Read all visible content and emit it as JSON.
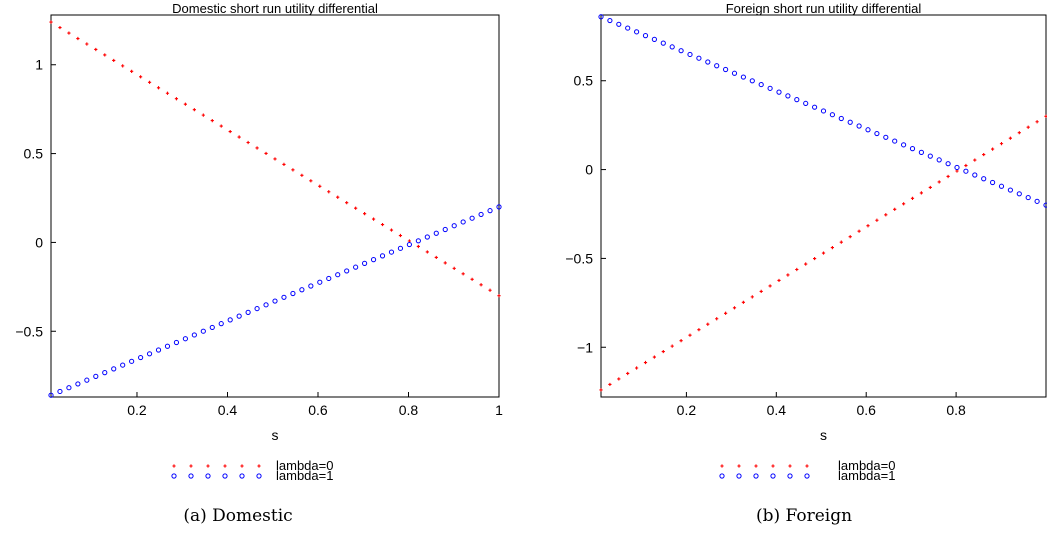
{
  "colors": {
    "lambda0": "#ff0000",
    "lambda1": "#0000ff",
    "axis": "#000000"
  },
  "chart_data": [
    {
      "type": "scatter",
      "title": "Domestic short run utility differential",
      "xlabel": "s",
      "ylabel": "",
      "xlim": [
        0.01,
        1.0
      ],
      "ylim": [
        -0.87,
        1.28
      ],
      "xticks": [
        "0.2",
        "0.4",
        "0.6",
        "0.8",
        "1"
      ],
      "xtick_values": [
        0.2,
        0.4,
        0.6,
        0.8,
        1.0
      ],
      "yticks": [
        "1",
        "0.5",
        "0",
        "−0.5"
      ],
      "ytick_values": [
        1.0,
        0.5,
        0.0,
        -0.5
      ],
      "series": [
        {
          "name": "lambda=0",
          "marker": "cross",
          "x_start": 0.01,
          "x_end": 1.0,
          "y_start": 1.24,
          "y_end": -0.3,
          "n_points": 51
        },
        {
          "name": "lambda=1",
          "marker": "circle",
          "x_start": 0.01,
          "x_end": 1.0,
          "y_start": -0.86,
          "y_end": 0.2,
          "n_points": 51
        }
      ],
      "caption": "(a) Domestic"
    },
    {
      "type": "scatter",
      "title": "Foreign short run utility differential",
      "xlabel": "s",
      "ylabel": "",
      "xlim": [
        0.01,
        1.0
      ],
      "ylim": [
        -1.28,
        0.87
      ],
      "xticks": [
        "0.2",
        "0.4",
        "0.6",
        "0.8"
      ],
      "xtick_values": [
        0.2,
        0.4,
        0.6,
        0.8
      ],
      "yticks": [
        "0.5",
        "0",
        "−0.5",
        "−1"
      ],
      "ytick_values": [
        0.5,
        0.0,
        -0.5,
        -1.0
      ],
      "series": [
        {
          "name": "lambda=0",
          "marker": "cross",
          "x_start": 0.01,
          "x_end": 1.0,
          "y_start": -1.24,
          "y_end": 0.3,
          "n_points": 51
        },
        {
          "name": "lambda=1",
          "marker": "circle",
          "x_start": 0.01,
          "x_end": 1.0,
          "y_start": 0.86,
          "y_end": -0.2,
          "n_points": 51
        }
      ],
      "caption": "(b) Foreign"
    }
  ]
}
